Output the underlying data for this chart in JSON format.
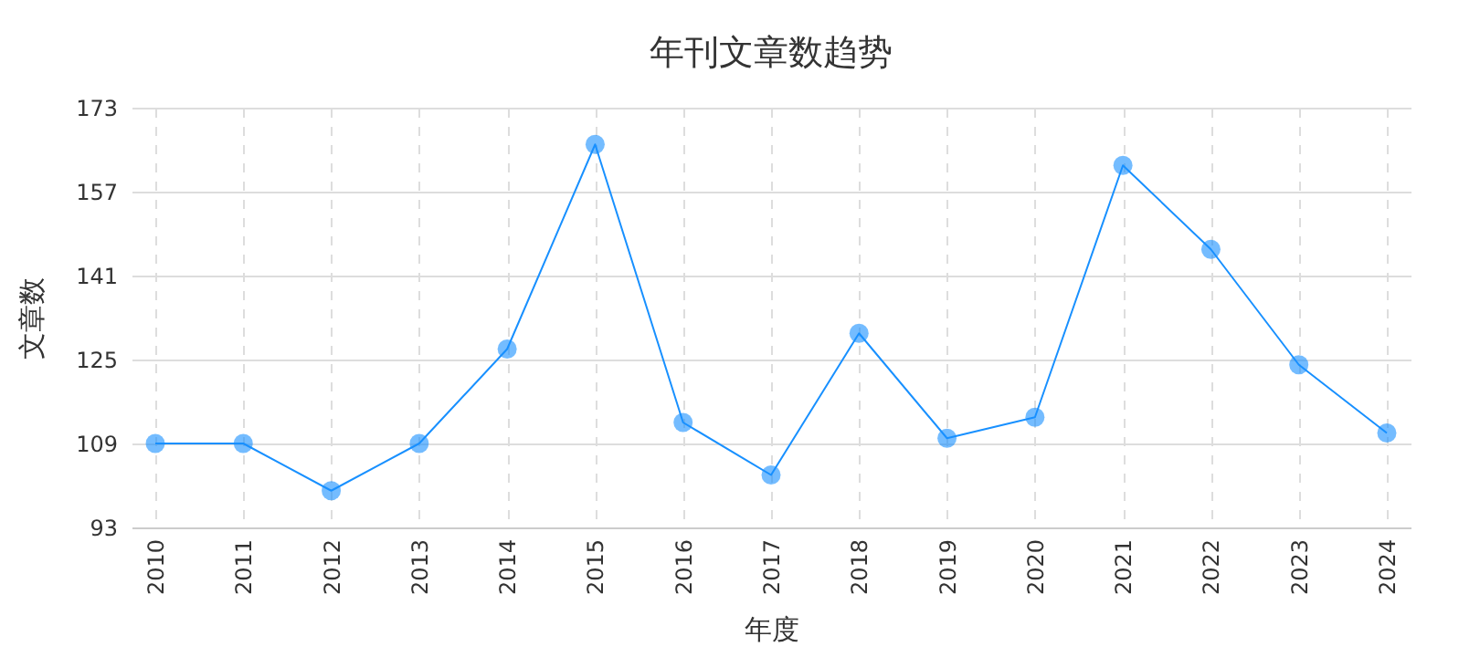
{
  "chart_data": {
    "type": "line",
    "title": "年刊文章数趋势",
    "xlabel": "年度",
    "ylabel": "文章数",
    "categories": [
      "2010",
      "2011",
      "2012",
      "2013",
      "2014",
      "2015",
      "2016",
      "2017",
      "2018",
      "2019",
      "2020",
      "2021",
      "2022",
      "2023",
      "2024"
    ],
    "series": [
      {
        "color": "#1890ff",
        "values": [
          109,
          109,
          100,
          109,
          127,
          166,
          113,
          103,
          130,
          110,
          114,
          162,
          146,
          124,
          111
        ]
      }
    ],
    "ylim": [
      93,
      173
    ],
    "yticks": [
      93,
      109,
      125,
      141,
      157,
      173
    ],
    "grid": true,
    "marker": "circle",
    "line_style": "solid",
    "legend": false
  }
}
